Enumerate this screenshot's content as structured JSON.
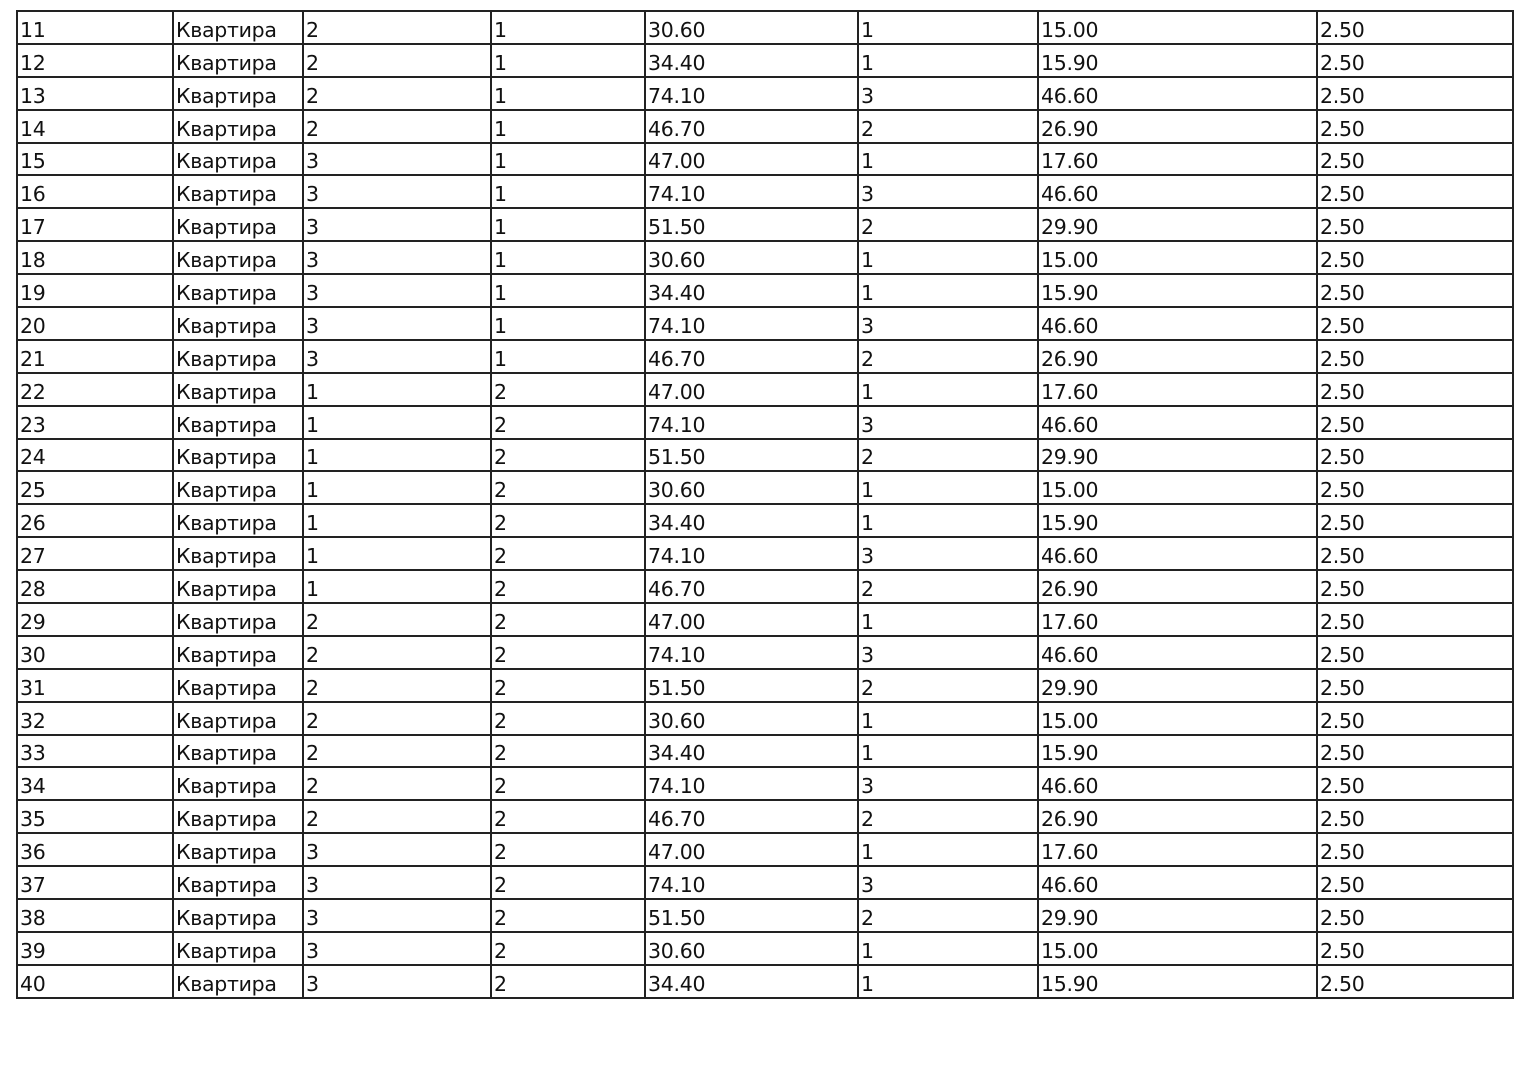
{
  "rows": [
    [
      "11",
      "Квартира",
      "2",
      "1",
      "30.60",
      "1",
      "15.00",
      "2.50"
    ],
    [
      "12",
      "Квартира",
      "2",
      "1",
      "34.40",
      "1",
      "15.90",
      "2.50"
    ],
    [
      "13",
      "Квартира",
      "2",
      "1",
      "74.10",
      "3",
      "46.60",
      "2.50"
    ],
    [
      "14",
      "Квартира",
      "2",
      "1",
      "46.70",
      "2",
      "26.90",
      "2.50"
    ],
    [
      "15",
      "Квартира",
      "3",
      "1",
      "47.00",
      "1",
      "17.60",
      "2.50"
    ],
    [
      "16",
      "Квартира",
      "3",
      "1",
      "74.10",
      "3",
      "46.60",
      "2.50"
    ],
    [
      "17",
      "Квартира",
      "3",
      "1",
      "51.50",
      "2",
      "29.90",
      "2.50"
    ],
    [
      "18",
      "Квартира",
      "3",
      "1",
      "30.60",
      "1",
      "15.00",
      "2.50"
    ],
    [
      "19",
      "Квартира",
      "3",
      "1",
      "34.40",
      "1",
      "15.90",
      "2.50"
    ],
    [
      "20",
      "Квартира",
      "3",
      "1",
      "74.10",
      "3",
      "46.60",
      "2.50"
    ],
    [
      "21",
      "Квартира",
      "3",
      "1",
      "46.70",
      "2",
      "26.90",
      "2.50"
    ],
    [
      "22",
      "Квартира",
      "1",
      "2",
      "47.00",
      "1",
      "17.60",
      "2.50"
    ],
    [
      "23",
      "Квартира",
      "1",
      "2",
      "74.10",
      "3",
      "46.60",
      "2.50"
    ],
    [
      "24",
      "Квартира",
      "1",
      "2",
      "51.50",
      "2",
      "29.90",
      "2.50"
    ],
    [
      "25",
      "Квартира",
      "1",
      "2",
      "30.60",
      "1",
      "15.00",
      "2.50"
    ],
    [
      "26",
      "Квартира",
      "1",
      "2",
      "34.40",
      "1",
      "15.90",
      "2.50"
    ],
    [
      "27",
      "Квартира",
      "1",
      "2",
      "74.10",
      "3",
      "46.60",
      "2.50"
    ],
    [
      "28",
      "Квартира",
      "1",
      "2",
      "46.70",
      "2",
      "26.90",
      "2.50"
    ],
    [
      "29",
      "Квартира",
      "2",
      "2",
      "47.00",
      "1",
      "17.60",
      "2.50"
    ],
    [
      "30",
      "Квартира",
      "2",
      "2",
      "74.10",
      "3",
      "46.60",
      "2.50"
    ],
    [
      "31",
      "Квартира",
      "2",
      "2",
      "51.50",
      "2",
      "29.90",
      "2.50"
    ],
    [
      "32",
      "Квартира",
      "2",
      "2",
      "30.60",
      "1",
      "15.00",
      "2.50"
    ],
    [
      "33",
      "Квартира",
      "2",
      "2",
      "34.40",
      "1",
      "15.90",
      "2.50"
    ],
    [
      "34",
      "Квартира",
      "2",
      "2",
      "74.10",
      "3",
      "46.60",
      "2.50"
    ],
    [
      "35",
      "Квартира",
      "2",
      "2",
      "46.70",
      "2",
      "26.90",
      "2.50"
    ],
    [
      "36",
      "Квартира",
      "3",
      "2",
      "47.00",
      "1",
      "17.60",
      "2.50"
    ],
    [
      "37",
      "Квартира",
      "3",
      "2",
      "74.10",
      "3",
      "46.60",
      "2.50"
    ],
    [
      "38",
      "Квартира",
      "3",
      "2",
      "51.50",
      "2",
      "29.90",
      "2.50"
    ],
    [
      "39",
      "Квартира",
      "3",
      "2",
      "30.60",
      "1",
      "15.00",
      "2.50"
    ],
    [
      "40",
      "Квартира",
      "3",
      "2",
      "34.40",
      "1",
      "15.90",
      "2.50"
    ]
  ]
}
